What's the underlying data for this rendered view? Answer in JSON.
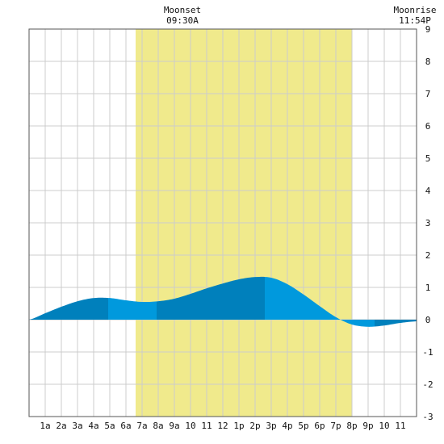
{
  "chart_data": {
    "type": "area",
    "title": "",
    "xlabel": "",
    "ylabel": "",
    "x_tick_labels": [
      "1a",
      "2a",
      "3a",
      "4a",
      "5a",
      "6a",
      "7a",
      "8a",
      "9a",
      "10",
      "11",
      "12",
      "1p",
      "2p",
      "3p",
      "4p",
      "5p",
      "6p",
      "7p",
      "8p",
      "9p",
      "10",
      "11"
    ],
    "y_tick_labels": [
      "-3",
      "-2",
      "-1",
      "0",
      "1",
      "2",
      "3",
      "4",
      "5",
      "6",
      "7",
      "8",
      "9"
    ],
    "xlim": [
      0,
      24
    ],
    "ylim": [
      -3,
      9
    ],
    "grid": true,
    "daylight": {
      "start_hour": 6.6,
      "end_hour": 20.0,
      "color": "#f0ea8c"
    },
    "moon_events": [
      {
        "label": "Moonset",
        "time": "09:30A",
        "hour": 9.5
      },
      {
        "label": "Moonrise",
        "time": "11:54P",
        "hour": 23.9
      }
    ],
    "tide_series": {
      "name": "",
      "hours": [
        0,
        1,
        2,
        3,
        4,
        5,
        6,
        7,
        8,
        9,
        10,
        11,
        12,
        13,
        14,
        15,
        16,
        17,
        18,
        19,
        20,
        21,
        22,
        23,
        24
      ],
      "heights_ft": [
        0.0,
        0.2,
        0.4,
        0.57,
        0.67,
        0.67,
        0.6,
        0.55,
        0.57,
        0.65,
        0.8,
        0.97,
        1.12,
        1.25,
        1.32,
        1.3,
        1.1,
        0.78,
        0.42,
        0.08,
        -0.15,
        -0.22,
        -0.18,
        -0.1,
        -0.05
      ]
    },
    "tide_events": [
      {
        "type": "high",
        "hour": 4.9,
        "height_ft": 0.68
      },
      {
        "type": "low",
        "hour": 7.9,
        "height_ft": 0.55
      },
      {
        "type": "high",
        "hour": 14.6,
        "height_ft": 1.32
      },
      {
        "type": "low",
        "hour": 21.4,
        "height_ft": -0.23
      }
    ],
    "colors": {
      "band_dark": "#0080bc",
      "band_light": "#0099dd",
      "grid": "#cccccc",
      "frame": "#555555"
    }
  }
}
